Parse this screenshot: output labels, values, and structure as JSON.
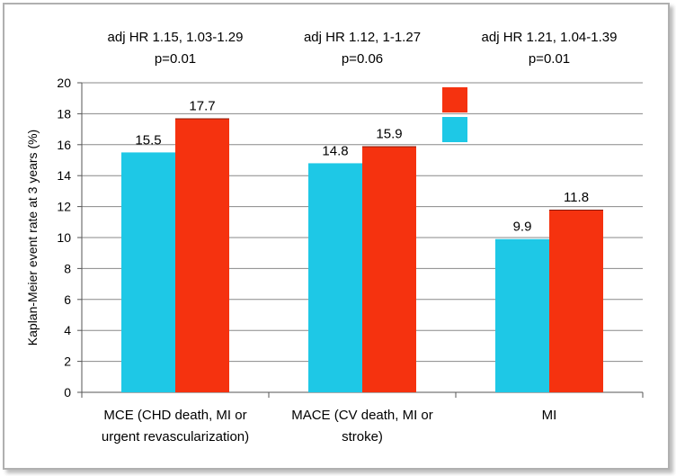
{
  "chart_data": {
    "type": "bar",
    "categories": [
      [
        "MCE (CHD death, MI or",
        "urgent revascularization)"
      ],
      [
        "MACE (CV death, MI or",
        "stroke)"
      ],
      [
        "MI"
      ]
    ],
    "series": [
      {
        "color": "#1ec8e6",
        "values": [
          15.5,
          14.8,
          9.9
        ],
        "labels": [
          "15.5",
          "14.8",
          "9.9"
        ]
      },
      {
        "color": "#f5320f",
        "values": [
          17.7,
          15.9,
          11.8
        ],
        "labels": [
          "17.7",
          "15.9",
          "11.8"
        ]
      }
    ],
    "annotations": [
      [
        "adj HR 1.15, 1.03-1.29",
        "p=0.01"
      ],
      [
        "adj HR 1.12, 1-1.27",
        "p=0.06"
      ],
      [
        "adj HR 1.21, 1.04-1.39",
        "p=0.01"
      ]
    ],
    "ylabel": "Kaplan-Meier event rate at 3 years (%)",
    "ylim": [
      0,
      20
    ],
    "yticks": [
      0,
      2,
      4,
      6,
      8,
      10,
      12,
      14,
      16,
      18,
      20
    ],
    "grid": true,
    "legend": {
      "position": "top-center",
      "entries": [
        "",
        ""
      ]
    }
  }
}
